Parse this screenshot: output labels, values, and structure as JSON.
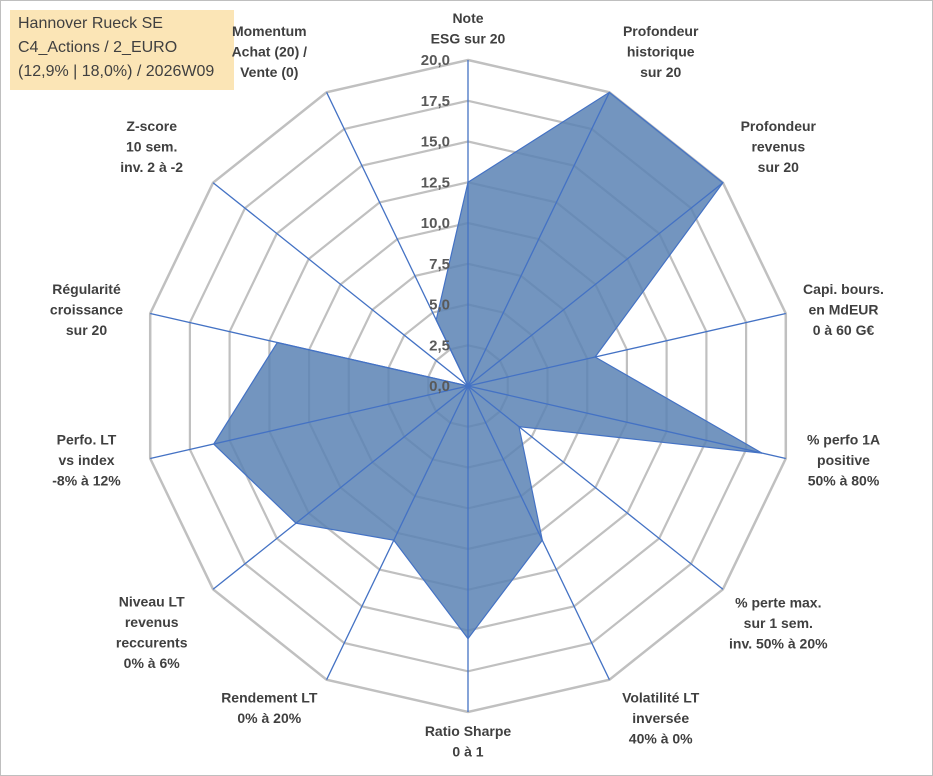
{
  "info": {
    "line1": "Hannover Rueck SE",
    "line2": "C4_Actions / 2_EURO",
    "line3": "(12,9% | 18,0%) / 2026W09"
  },
  "colors": {
    "fill": "#5b82b4",
    "stroke": "#4472c4",
    "grid": "#c0c0c0",
    "spoke": "#4472c4"
  },
  "chart_data": {
    "type": "radar",
    "title": "Hannover Rueck SE",
    "range": [
      0,
      20
    ],
    "tick_step": 2.5,
    "tick_labels": [
      "0,0",
      "2,5",
      "5,0",
      "7,5",
      "10,0",
      "12,5",
      "15,0",
      "17,5",
      "20,0"
    ],
    "categories": [
      [
        "Note",
        "ESG sur 20"
      ],
      [
        "Profondeur",
        "historique",
        "sur 20"
      ],
      [
        "Profondeur",
        "revenus",
        "sur 20"
      ],
      [
        "Capi. bours.",
        "en MdEUR",
        "0 à 60 G€"
      ],
      [
        "% perfo 1A",
        "positive",
        "50% à 80%"
      ],
      [
        "% perte max.",
        "sur 1 sem.",
        "inv. 50% à 20%"
      ],
      [
        "Volatilité LT",
        "inversée",
        "40% à 0%"
      ],
      [
        "Ratio Sharpe",
        "0 à 1"
      ],
      [
        "Rendement LT",
        "0% à 20%"
      ],
      [
        "Niveau LT",
        "revenus",
        "reccurents",
        "0% à 6%"
      ],
      [
        "Perfo. LT",
        "vs index",
        "-8% à 12%"
      ],
      [
        "Régularité",
        "croissance",
        "sur 20"
      ],
      [
        "Z-score",
        "10 sem.",
        "inv. 2 à -2"
      ],
      [
        "Momentum",
        "Achat (20) /",
        "Vente (0)"
      ]
    ],
    "series": [
      {
        "name": "Hannover Rueck SE",
        "values": [
          12.5,
          20,
          20,
          8,
          18.5,
          4,
          10.5,
          15.5,
          10.5,
          13.5,
          16,
          12,
          0,
          4.5
        ]
      }
    ]
  }
}
